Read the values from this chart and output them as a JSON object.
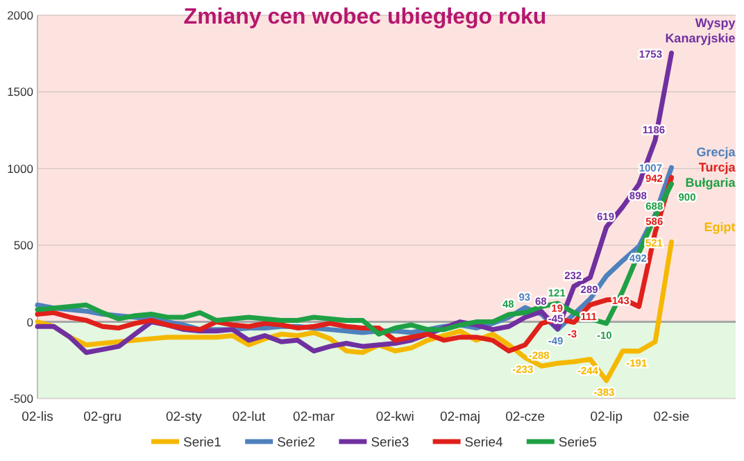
{
  "chart_data": {
    "type": "line",
    "title": "Zmiany cen wobec ubiegłego roku",
    "categories": [
      "02-lis",
      null,
      null,
      null,
      "02-gru",
      null,
      null,
      null,
      null,
      "02-sty",
      null,
      null,
      null,
      "02-lut",
      null,
      null,
      null,
      "02-mar",
      null,
      null,
      null,
      null,
      "02-kwi",
      null,
      null,
      null,
      "02-maj",
      null,
      null,
      null,
      "02-cze",
      null,
      null,
      null,
      null,
      "02-lip",
      null,
      null,
      null,
      "02-sie"
    ],
    "series": [
      {
        "name": "Serie1",
        "color": "#f5b800",
        "values": [
          0,
          -30,
          -100,
          -150,
          -140,
          -130,
          -120,
          -110,
          -100,
          -100,
          -100,
          -100,
          -90,
          -150,
          -110,
          -80,
          -90,
          -70,
          -110,
          -190,
          -200,
          -150,
          -190,
          -170,
          -120,
          -90,
          -60,
          -120,
          -80,
          -150,
          -233,
          -288,
          -270,
          -260,
          -244,
          -383,
          -190,
          -191,
          -130,
          521
        ],
        "value_labels": [
          null,
          null,
          null,
          null,
          null,
          null,
          null,
          null,
          null,
          null,
          null,
          null,
          null,
          null,
          null,
          null,
          null,
          null,
          null,
          null,
          null,
          null,
          null,
          null,
          null,
          null,
          null,
          null,
          null,
          null,
          "-233",
          "-288",
          null,
          null,
          "-244",
          "-383",
          null,
          "-191",
          null,
          "521"
        ]
      },
      {
        "name": "Serie2",
        "color": "#4f81bd",
        "values": [
          110,
          90,
          80,
          70,
          50,
          40,
          30,
          20,
          0,
          -20,
          -50,
          -50,
          -50,
          -40,
          -40,
          -30,
          -30,
          -40,
          -50,
          -60,
          -70,
          -60,
          -60,
          -70,
          -50,
          -30,
          -20,
          -40,
          -10,
          30,
          93,
          50,
          -49,
          50,
          150,
          300,
          400,
          492,
          700,
          1007
        ],
        "value_labels": [
          null,
          null,
          null,
          null,
          null,
          null,
          null,
          null,
          null,
          null,
          null,
          null,
          null,
          null,
          null,
          null,
          null,
          null,
          null,
          null,
          null,
          null,
          null,
          null,
          null,
          null,
          null,
          null,
          null,
          null,
          "93",
          null,
          "-49",
          null,
          null,
          null,
          null,
          "492",
          null,
          "1007"
        ]
      },
      {
        "name": "Serie3",
        "color": "#7030a0",
        "values": [
          -30,
          -30,
          -100,
          -200,
          -180,
          -160,
          -80,
          0,
          -20,
          -50,
          -60,
          -60,
          -50,
          -120,
          -90,
          -130,
          -120,
          -190,
          -160,
          -140,
          -160,
          -150,
          -140,
          -120,
          -80,
          -40,
          0,
          -20,
          -50,
          -30,
          30,
          68,
          -45,
          232,
          289,
          619,
          750,
          898,
          1186,
          1753
        ],
        "value_labels": [
          null,
          null,
          null,
          null,
          null,
          null,
          null,
          null,
          null,
          null,
          null,
          null,
          null,
          null,
          null,
          null,
          null,
          null,
          null,
          null,
          null,
          null,
          null,
          null,
          null,
          null,
          null,
          null,
          null,
          null,
          null,
          "68",
          "-45",
          "232",
          "289",
          "619",
          null,
          "898",
          "1186",
          "1753"
        ]
      },
      {
        "name": "Serie4",
        "color": "#e0201b",
        "values": [
          50,
          60,
          30,
          10,
          -30,
          -40,
          -10,
          10,
          -20,
          -40,
          -50,
          0,
          -20,
          -30,
          -10,
          -20,
          -40,
          -30,
          -10,
          -30,
          -40,
          -40,
          -120,
          -100,
          -80,
          -120,
          -100,
          -100,
          -120,
          -190,
          -150,
          -10,
          19,
          -3,
          111,
          143,
          150,
          100,
          586,
          942
        ],
        "value_labels": [
          null,
          null,
          null,
          null,
          null,
          null,
          null,
          null,
          null,
          null,
          null,
          null,
          null,
          null,
          null,
          null,
          null,
          null,
          null,
          null,
          null,
          null,
          null,
          null,
          null,
          null,
          null,
          null,
          null,
          null,
          null,
          null,
          "19",
          "-3",
          "111",
          "143",
          null,
          null,
          "586",
          "942"
        ]
      },
      {
        "name": "Serie5",
        "color": "#1fa045",
        "values": [
          80,
          90,
          100,
          110,
          60,
          20,
          40,
          50,
          30,
          30,
          60,
          10,
          20,
          30,
          20,
          10,
          10,
          30,
          20,
          10,
          10,
          -80,
          -40,
          -20,
          -50,
          -50,
          -20,
          0,
          0,
          48,
          60,
          100,
          121,
          60,
          20,
          -10,
          200,
          450,
          688,
          900
        ],
        "value_labels": [
          null,
          null,
          null,
          null,
          null,
          null,
          null,
          null,
          null,
          null,
          null,
          null,
          null,
          null,
          null,
          null,
          null,
          null,
          null,
          null,
          null,
          null,
          null,
          null,
          null,
          null,
          null,
          null,
          null,
          "48",
          null,
          null,
          "121",
          null,
          null,
          "-10",
          null,
          null,
          "688",
          "900"
        ]
      }
    ],
    "ylim": [
      -500,
      2000
    ],
    "yticks": [
      -500,
      0,
      500,
      1000,
      1500,
      2000
    ],
    "grid": "y",
    "legend": "bottom",
    "bands": [
      {
        "axis": "y",
        "from": 0,
        "to": 2000,
        "color": "#fde3e0"
      },
      {
        "axis": "y",
        "from": -500,
        "to": 0,
        "color": "#e3f7e1"
      }
    ],
    "annotations": [
      {
        "text": "Wyspy Kanaryjskie",
        "x": "02-sie",
        "y": 1753
      },
      {
        "text": "Grecja",
        "x": "02-sie",
        "y": 1007
      },
      {
        "text": "Turcja",
        "x": "02-sie",
        "y": 942
      },
      {
        "text": "Bułgaria",
        "x": "02-sie",
        "y": 900
      },
      {
        "text": "Egipt",
        "x": "02-sie",
        "y": 521
      }
    ]
  }
}
